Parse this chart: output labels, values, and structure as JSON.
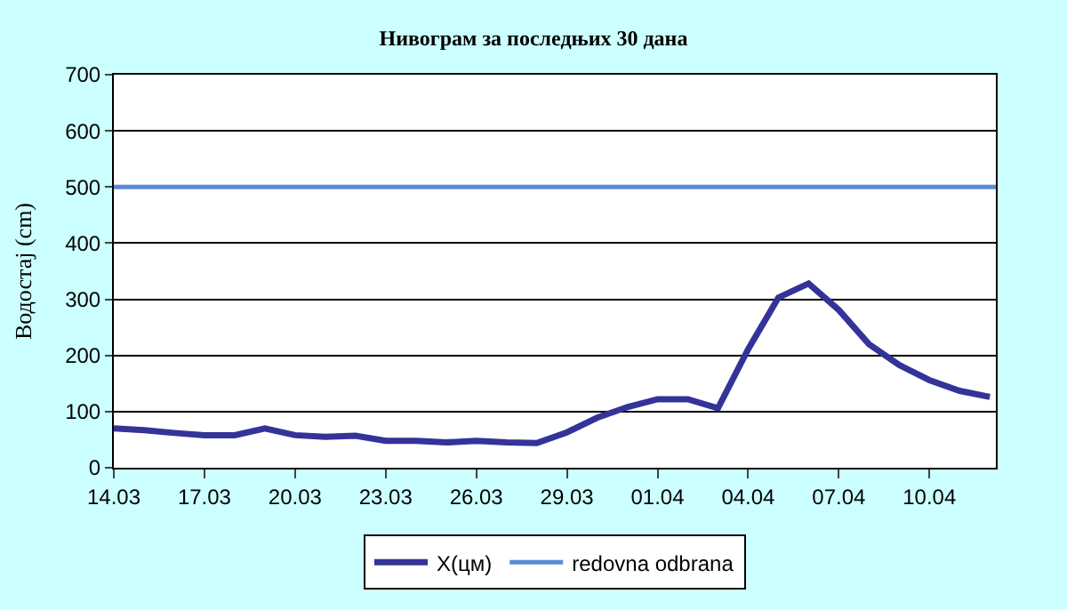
{
  "chart_data": {
    "type": "line",
    "title": "Нивограм за последњих 30 дана",
    "ylabel": "Водостај (cm)",
    "categories": [
      "14.03",
      null,
      null,
      "17.03",
      null,
      null,
      "20.03",
      null,
      null,
      "23.03",
      null,
      null,
      "26.03",
      null,
      null,
      "29.03",
      null,
      null,
      "01.04",
      null,
      null,
      "04.04",
      null,
      null,
      "07.04",
      null,
      null,
      "10.04",
      null,
      null
    ],
    "series": [
      {
        "name": "X(цм)",
        "color": "#333399",
        "values": [
          70,
          67,
          62,
          58,
          58,
          70,
          58,
          55,
          57,
          48,
          48,
          45,
          48,
          45,
          44,
          63,
          89,
          108,
          122,
          122,
          106,
          211,
          303,
          328,
          281,
          220,
          183,
          156,
          137,
          126
        ]
      }
    ],
    "ref_lines": [
      {
        "axis": "y",
        "value": 500,
        "label": "redovna odbrana",
        "color": "#5b8bd0"
      }
    ],
    "ylim": [
      0,
      700
    ],
    "yticks": [
      0,
      100,
      200,
      300,
      400,
      500,
      600,
      700
    ],
    "grid": "y",
    "legend": "bottom",
    "marker": "none",
    "line_style": "solid"
  }
}
